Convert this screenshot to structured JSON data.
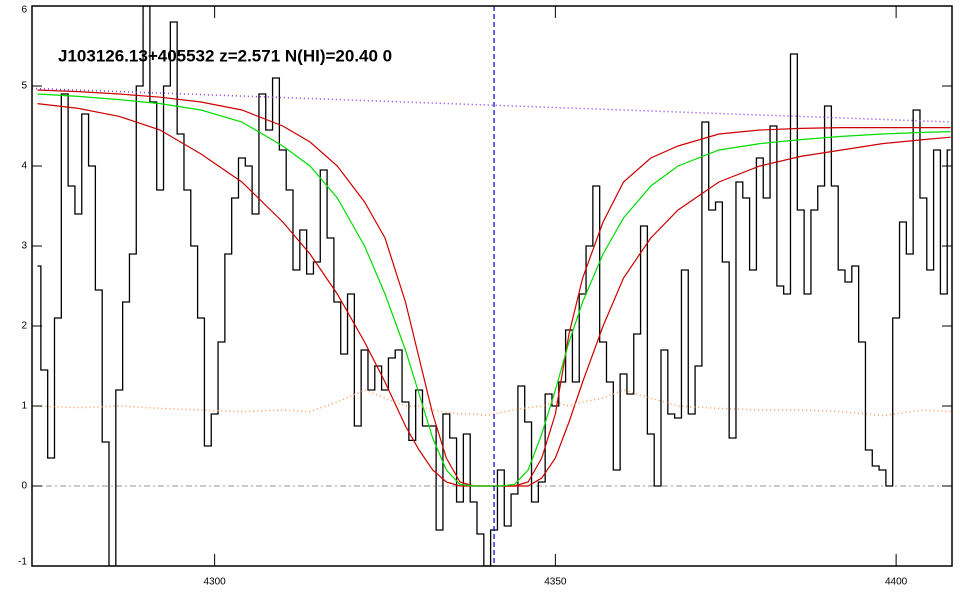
{
  "chart_data": {
    "type": "line",
    "title": "J103126.13+405532 z=2.571 N(HI)=20.40 0",
    "xlim": [
      4273.2,
      4408.2
    ],
    "ylim": [
      -1,
      6
    ],
    "xticks": [
      4300,
      4350,
      4400
    ],
    "yticks": [
      -1,
      0,
      1,
      2,
      3,
      4,
      5,
      6
    ],
    "vline": {
      "value": 4341,
      "color": "#0000cc"
    },
    "hline": {
      "value": 0,
      "color": "#999999"
    },
    "series": [
      {
        "color": "#000000",
        "style": "steps",
        "x": [
          4274,
          4275,
          4276,
          4277,
          4278,
          4279,
          4280,
          4281,
          4282,
          4283,
          4284,
          4285,
          4286,
          4287,
          4288,
          4289,
          4290,
          4291,
          4292,
          4293,
          4294,
          4295,
          4296,
          4297,
          4298,
          4299,
          4300,
          4301,
          4302,
          4303,
          4304,
          4305,
          4306,
          4307,
          4308,
          4309,
          4310,
          4311,
          4312,
          4313,
          4314,
          4315,
          4316,
          4317,
          4318,
          4319,
          4320,
          4321,
          4322,
          4323,
          4324,
          4325,
          4326,
          4327,
          4328,
          4329,
          4330,
          4331,
          4332,
          4333,
          4334,
          4335,
          4336,
          4337,
          4338,
          4339,
          4340,
          4341,
          4342,
          4343,
          4344,
          4345,
          4346,
          4347,
          4348,
          4349,
          4350,
          4351,
          4352,
          4353,
          4354,
          4355,
          4356,
          4357,
          4358,
          4359,
          4360,
          4361,
          4362,
          4363,
          4364,
          4365,
          4366,
          4367,
          4368,
          4369,
          4370,
          4371,
          4372,
          4373,
          4374,
          4375,
          4376,
          4377,
          4378,
          4379,
          4380,
          4381,
          4382,
          4383,
          4384,
          4385,
          4386,
          4387,
          4388,
          4389,
          4390,
          4391,
          4392,
          4393,
          4394,
          4395,
          4396,
          4397,
          4398,
          4399,
          4400,
          4401,
          4402,
          4403,
          4404,
          4405,
          4406,
          4407,
          4408
        ],
        "values": [
          2.75,
          1.45,
          0.35,
          2.1,
          4.9,
          3.75,
          3.4,
          4.65,
          4.0,
          2.45,
          0.55,
          -1,
          1.2,
          2.3,
          2.9,
          5.0,
          6,
          4.8,
          3.7,
          5.0,
          5.8,
          4.4,
          3.7,
          3.0,
          2.1,
          0.5,
          0.9,
          1.8,
          2.9,
          3.6,
          4.1,
          4.0,
          3.4,
          4.9,
          4.45,
          5.1,
          4.2,
          3.7,
          2.7,
          3.2,
          2.65,
          2.8,
          3.95,
          3.1,
          2.3,
          1.65,
          2.4,
          0.75,
          1.7,
          1.2,
          1.5,
          1.2,
          1.6,
          1.7,
          1.05,
          0.57,
          1.2,
          0.75,
          0.75,
          -0.55,
          0.9,
          0.6,
          -0.2,
          0.65,
          -0.2,
          -0.6,
          -1,
          -0.55,
          0.2,
          -0.5,
          -0.1,
          1.25,
          0.8,
          -0.2,
          0.05,
          1.15,
          1.0,
          1.3,
          1.95,
          1.3,
          2.4,
          3.0,
          3.75,
          1.8,
          1.3,
          0.2,
          1.4,
          1.15,
          1.9,
          3.25,
          0.65,
          0.0,
          1.7,
          0.9,
          0.85,
          2.7,
          0.9,
          1.5,
          4.55,
          3.45,
          3.55,
          2.8,
          0.6,
          3.8,
          3.6,
          2.7,
          4.1,
          3.6,
          4.5,
          2.5,
          2.4,
          5.4,
          3.45,
          2.4,
          3.45,
          3.75,
          4.75,
          3.75,
          2.7,
          2.55,
          2.75,
          1.8,
          0.45,
          0.25,
          0.2,
          0.0,
          2.1,
          3.3,
          2.9,
          4.7,
          3.6,
          2.7,
          4.2,
          2.4,
          4.2
        ]
      },
      {
        "color": "#cc0000",
        "style": "solid",
        "x": [
          4274,
          4280,
          4286,
          4292,
          4298,
          4304,
          4310,
          4314,
          4318,
          4322,
          4325,
          4328,
          4330,
          4332,
          4334,
          4336,
          4338,
          4340,
          4342,
          4344,
          4346,
          4348,
          4350,
          4352,
          4354,
          4357,
          4360,
          4364,
          4368,
          4374,
          4380,
          4386,
          4392,
          4398,
          4404,
          4408
        ],
        "values": [
          4.95,
          4.93,
          4.9,
          4.86,
          4.8,
          4.7,
          4.5,
          4.3,
          4.0,
          3.55,
          3.1,
          2.3,
          1.6,
          0.9,
          0.35,
          0.05,
          0,
          0,
          0,
          0,
          0.05,
          0.35,
          0.9,
          1.9,
          2.6,
          3.3,
          3.8,
          4.1,
          4.25,
          4.4,
          4.45,
          4.47,
          4.48,
          4.48,
          4.48,
          4.48
        ]
      },
      {
        "color": "#cc0000",
        "style": "solid",
        "x": [
          4274,
          4280,
          4286,
          4292,
          4298,
          4304,
          4310,
          4314,
          4318,
          4322,
          4325,
          4328,
          4330,
          4332,
          4334,
          4336,
          4338,
          4340,
          4342,
          4344,
          4346,
          4348,
          4350,
          4352,
          4354,
          4357,
          4360,
          4364,
          4368,
          4374,
          4380,
          4386,
          4392,
          4398,
          4404,
          4408
        ],
        "values": [
          4.78,
          4.72,
          4.62,
          4.45,
          4.15,
          3.8,
          3.3,
          2.9,
          2.4,
          1.8,
          1.3,
          0.75,
          0.45,
          0.2,
          0.05,
          0,
          0,
          0,
          0,
          0,
          0,
          0.1,
          0.35,
          0.8,
          1.3,
          2.0,
          2.6,
          3.1,
          3.45,
          3.8,
          4.0,
          4.12,
          4.2,
          4.28,
          4.33,
          4.36
        ]
      },
      {
        "color": "#00dd00",
        "style": "solid",
        "x": [
          4274,
          4280,
          4286,
          4292,
          4298,
          4304,
          4310,
          4314,
          4318,
          4322,
          4325,
          4328,
          4330,
          4332,
          4334,
          4336,
          4338,
          4340,
          4342,
          4344,
          4346,
          4348,
          4350,
          4352,
          4354,
          4357,
          4360,
          4364,
          4368,
          4374,
          4380,
          4386,
          4392,
          4398,
          4404,
          4408
        ],
        "values": [
          4.9,
          4.87,
          4.83,
          4.78,
          4.7,
          4.55,
          4.25,
          4.0,
          3.6,
          3.0,
          2.4,
          1.7,
          1.15,
          0.6,
          0.2,
          0.02,
          0,
          0,
          0,
          0.02,
          0.2,
          0.65,
          1.2,
          1.8,
          2.3,
          2.9,
          3.35,
          3.75,
          4.0,
          4.2,
          4.28,
          4.33,
          4.37,
          4.4,
          4.42,
          4.43
        ]
      },
      {
        "color": "#8833ee",
        "style": "dotted",
        "x": [
          4273.2,
          4408.2
        ],
        "values": [
          4.97,
          4.55
        ]
      },
      {
        "color": "#ff9955",
        "style": "dotted",
        "x": [
          4274,
          4280,
          4286,
          4292,
          4298,
          4304,
          4310,
          4314,
          4318,
          4322,
          4325,
          4328,
          4330,
          4332,
          4334,
          4336,
          4338,
          4340,
          4342,
          4344,
          4346,
          4348,
          4350,
          4352,
          4354,
          4357,
          4360,
          4364,
          4368,
          4374,
          4380,
          4386,
          4392,
          4398,
          4404,
          4408
        ],
        "values": [
          1.0,
          0.98,
          1.0,
          0.97,
          0.95,
          0.93,
          0.95,
          0.93,
          1.05,
          1.2,
          1.1,
          1.0,
          1.0,
          0.95,
          0.92,
          0.9,
          0.9,
          0.88,
          0.92,
          0.95,
          0.98,
          1.0,
          1.05,
          1.0,
          1.05,
          1.1,
          1.2,
          1.1,
          1.0,
          0.97,
          0.95,
          0.95,
          0.93,
          0.88,
          0.95,
          0.93
        ]
      }
    ]
  }
}
